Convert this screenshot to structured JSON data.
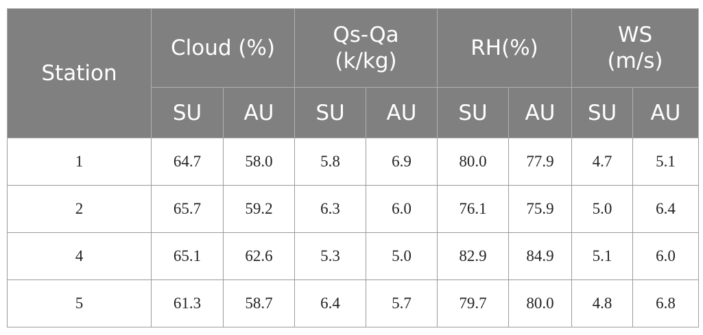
{
  "table": {
    "header": {
      "station": "Station",
      "groups": [
        [
          "Cloud (%)"
        ],
        [
          "Qs-Qa",
          "(k/kg)"
        ],
        [
          "RH(%)"
        ],
        [
          "WS",
          "(m/s)"
        ]
      ],
      "subheaders": [
        "SU",
        "AU",
        "SU",
        "AU",
        "SU",
        "AU",
        "SU",
        "AU"
      ]
    },
    "rows": [
      [
        1,
        "64.7",
        "58.0",
        "5.8",
        "6.9",
        "80.0",
        "77.9",
        "4.7",
        "5.1"
      ],
      [
        2,
        "65.7",
        "59.2",
        "6.3",
        "6.0",
        "76.1",
        "75.9",
        "5.0",
        "6.4"
      ],
      [
        4,
        "65.1",
        "62.6",
        "5.3",
        "5.0",
        "82.9",
        "84.9",
        "5.1",
        "6.0"
      ],
      [
        5,
        "61.3",
        "58.7",
        "6.4",
        "5.7",
        "79.7",
        "80.0",
        "4.8",
        "6.8"
      ]
    ]
  }
}
